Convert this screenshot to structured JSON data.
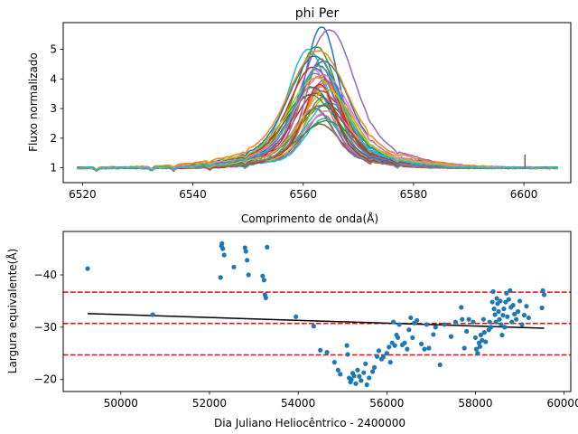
{
  "chart_data": [
    {
      "type": "line",
      "title": "phi Per",
      "xlabel": "Comprimento de onda(Å)",
      "ylabel": "Fluxo normalizado",
      "xlim": [
        6516.5,
        6608.5
      ],
      "ylim": [
        0.5,
        5.9
      ],
      "xticks": [
        6520,
        6540,
        6560,
        6580,
        6600
      ],
      "yticks": [
        1,
        2,
        3,
        4,
        5
      ],
      "grid": false,
      "legend": "none",
      "line_center": 6563,
      "peak_range": [
        2.4,
        5.65
      ],
      "spectra_count": 40,
      "x_range_data": [
        6519,
        6606.5
      ],
      "series": [
        {
          "color": "#1f77b4",
          "peak": 5.65,
          "center": 6563.3
        },
        {
          "color": "#ff7f0e",
          "peak": 3.4,
          "center": 6562.6
        },
        {
          "color": "#2ca02c",
          "peak": 5.0,
          "center": 6562.4
        },
        {
          "color": "#d62728",
          "peak": 3.5,
          "center": 6563.1
        },
        {
          "color": "#9467bd",
          "peak": 5.55,
          "center": 6564.7
        },
        {
          "color": "#8c564b",
          "peak": 2.4,
          "center": 6563.0
        },
        {
          "color": "#e377c2",
          "peak": 4.2,
          "center": 6562.0
        },
        {
          "color": "#7f7f7f",
          "peak": 3.3,
          "center": 6563.5
        },
        {
          "color": "#bcbd22",
          "peak": 3.6,
          "center": 6561.5
        },
        {
          "color": "#17becf",
          "peak": 4.9,
          "center": 6560.9
        },
        {
          "color": "#1f77b4",
          "peak": 4.5,
          "center": 6563.7
        },
        {
          "color": "#ff7f0e",
          "peak": 4.0,
          "center": 6562.9
        },
        {
          "color": "#2ca02c",
          "peak": 3.0,
          "center": 6564.1
        },
        {
          "color": "#d62728",
          "peak": 4.3,
          "center": 6561.8
        },
        {
          "color": "#9467bd",
          "peak": 3.9,
          "center": 6563.9
        },
        {
          "color": "#8c564b",
          "peak": 2.9,
          "center": 6562.3
        },
        {
          "color": "#e377c2",
          "peak": 3.7,
          "center": 6564.3
        },
        {
          "color": "#7f7f7f",
          "peak": 4.1,
          "center": 6562.2
        },
        {
          "color": "#bcbd22",
          "peak": 3.2,
          "center": 6563.6
        },
        {
          "color": "#17becf",
          "peak": 3.1,
          "center": 6564.8
        },
        {
          "color": "#1f77b4",
          "peak": 4.7,
          "center": 6562.1
        },
        {
          "color": "#ff7f0e",
          "peak": 3.8,
          "center": 6564.0
        },
        {
          "color": "#2ca02c",
          "peak": 3.35,
          "center": 6561.2
        },
        {
          "color": "#d62728",
          "peak": 4.4,
          "center": 6562.8
        },
        {
          "color": "#9467bd",
          "peak": 2.7,
          "center": 6563.4
        },
        {
          "color": "#8c564b",
          "peak": 3.45,
          "center": 6561.9
        },
        {
          "color": "#e377c2",
          "peak": 2.8,
          "center": 6564.5
        },
        {
          "color": "#7f7f7f",
          "peak": 4.6,
          "center": 6563.2
        },
        {
          "color": "#bcbd22",
          "peak": 3.95,
          "center": 6562.5
        },
        {
          "color": "#17becf",
          "peak": 2.6,
          "center": 6563.8
        },
        {
          "color": "#1f77b4",
          "peak": 3.65,
          "center": 6561.6
        },
        {
          "color": "#ff7f0e",
          "peak": 4.85,
          "center": 6562.7
        },
        {
          "color": "#2ca02c",
          "peak": 2.5,
          "center": 6564.2
        },
        {
          "color": "#d62728",
          "peak": 3.75,
          "center": 6563.0
        },
        {
          "color": "#9467bd",
          "peak": 4.25,
          "center": 6562.4
        },
        {
          "color": "#8c564b",
          "peak": 3.05,
          "center": 6563.3
        },
        {
          "color": "#e377c2",
          "peak": 4.05,
          "center": 6563.6
        },
        {
          "color": "#7f7f7f",
          "peak": 2.95,
          "center": 6562.0
        },
        {
          "color": "#bcbd22",
          "peak": 3.55,
          "center": 6564.4
        },
        {
          "color": "#17becf",
          "peak": 4.35,
          "center": 6562.9
        }
      ]
    },
    {
      "type": "scatter",
      "xlabel": "Dia Juliano Heliocêntrico - 2400000",
      "ylabel": "Largura equivalente(Å)",
      "xlim": [
        48700,
        60150
      ],
      "ylim": [
        -48.3,
        -17.7
      ],
      "y_inverted": true,
      "xticks": [
        50000,
        52000,
        54000,
        56000,
        58000,
        60000
      ],
      "yticks": [
        -40,
        -30,
        -20
      ],
      "grid": false,
      "legend": "none",
      "point_color": "#1f77b4",
      "points": [
        [
          49250,
          -41.2
        ],
        [
          50720,
          -32.4
        ],
        [
          52250,
          -39.5
        ],
        [
          52270,
          -45.5
        ],
        [
          52280,
          -46.0
        ],
        [
          52300,
          -45.0
        ],
        [
          52330,
          -43.8
        ],
        [
          52550,
          -41.5
        ],
        [
          52800,
          -45.2
        ],
        [
          52820,
          -44.5
        ],
        [
          52850,
          -42.8
        ],
        [
          52880,
          -40.0
        ],
        [
          53200,
          -39.8
        ],
        [
          53230,
          -39.0
        ],
        [
          53250,
          -36.2
        ],
        [
          53270,
          -35.6
        ],
        [
          53300,
          -45.3
        ],
        [
          53950,
          -32.0
        ],
        [
          54350,
          -30.2
        ],
        [
          54500,
          -25.6
        ],
        [
          54650,
          -25.2
        ],
        [
          54820,
          -23.3
        ],
        [
          54900,
          -21.8
        ],
        [
          54950,
          -21.0
        ],
        [
          55100,
          -26.5
        ],
        [
          55120,
          -24.8
        ],
        [
          55150,
          -20.3
        ],
        [
          55180,
          -19.5
        ],
        [
          55200,
          -20.0
        ],
        [
          55230,
          -21.2
        ],
        [
          55260,
          -20.7
        ],
        [
          55300,
          -19.2
        ],
        [
          55340,
          -21.8
        ],
        [
          55380,
          -20.6
        ],
        [
          55420,
          -19.8
        ],
        [
          55480,
          -21.3
        ],
        [
          55520,
          -23.0
        ],
        [
          55550,
          -19.0
        ],
        [
          55600,
          -20.3
        ],
        [
          55680,
          -21.5
        ],
        [
          55720,
          -22.3
        ],
        [
          55780,
          -24.4
        ],
        [
          55820,
          -25.5
        ],
        [
          55880,
          -23.9
        ],
        [
          55920,
          -24.3
        ],
        [
          56000,
          -25.0
        ],
        [
          56050,
          -26.2
        ],
        [
          56080,
          -23.3
        ],
        [
          56120,
          -27.0
        ],
        [
          56150,
          -31.0
        ],
        [
          56180,
          -26.5
        ],
        [
          56220,
          -28.5
        ],
        [
          56250,
          -28.0
        ],
        [
          56280,
          -30.5
        ],
        [
          56350,
          -26.6
        ],
        [
          56400,
          -27.0
        ],
        [
          56460,
          -25.8
        ],
        [
          56500,
          -29.5
        ],
        [
          56540,
          -31.8
        ],
        [
          56580,
          -28.0
        ],
        [
          56620,
          -30.8
        ],
        [
          56680,
          -31.3
        ],
        [
          56780,
          -26.8
        ],
        [
          56850,
          -25.8
        ],
        [
          56900,
          -30.5
        ],
        [
          56950,
          -26.0
        ],
        [
          57050,
          -28.6
        ],
        [
          57100,
          -30.0
        ],
        [
          57200,
          -22.8
        ],
        [
          57300,
          -30.5
        ],
        [
          57450,
          -28.2
        ],
        [
          57550,
          -31.0
        ],
        [
          57680,
          -33.8
        ],
        [
          57700,
          -31.5
        ],
        [
          57750,
          -26.0
        ],
        [
          57800,
          -29.2
        ],
        [
          57850,
          -31.5
        ],
        [
          57950,
          -31.0
        ],
        [
          58000,
          -28.0
        ],
        [
          58020,
          -25.8
        ],
        [
          58050,
          -25.0
        ],
        [
          58080,
          -27.0
        ],
        [
          58100,
          -26.3
        ],
        [
          58120,
          -28.5
        ],
        [
          58150,
          -27.5
        ],
        [
          58180,
          -31.5
        ],
        [
          58200,
          -29.0
        ],
        [
          58230,
          -27.2
        ],
        [
          58300,
          -29.5
        ],
        [
          58320,
          -31.0
        ],
        [
          58350,
          -30.0
        ],
        [
          58380,
          -34.8
        ],
        [
          58400,
          -36.8
        ],
        [
          58420,
          -33.5
        ],
        [
          58440,
          -32.4
        ],
        [
          58460,
          -31.0
        ],
        [
          58480,
          -35.5
        ],
        [
          58500,
          -34.5
        ],
        [
          58520,
          -33.0
        ],
        [
          58540,
          -31.5
        ],
        [
          58560,
          -35.0
        ],
        [
          58580,
          -30.5
        ],
        [
          58600,
          -28.5
        ],
        [
          58620,
          -32.3
        ],
        [
          58640,
          -33.5
        ],
        [
          58660,
          -30.0
        ],
        [
          58680,
          -34.8
        ],
        [
          58700,
          -36.5
        ],
        [
          58720,
          -32.0
        ],
        [
          58750,
          -35.3
        ],
        [
          58780,
          -37.0
        ],
        [
          58800,
          -33.8
        ],
        [
          58820,
          -31.0
        ],
        [
          58850,
          -34.2
        ],
        [
          58880,
          -32.5
        ],
        [
          58920,
          -31.5
        ],
        [
          58960,
          -33.0
        ],
        [
          59000,
          -35.0
        ],
        [
          59050,
          -30.5
        ],
        [
          59100,
          -32.3
        ],
        [
          59150,
          -34.0
        ],
        [
          59200,
          -31.8
        ],
        [
          59500,
          -33.7
        ],
        [
          59520,
          -37.0
        ],
        [
          59550,
          -36.2
        ]
      ],
      "trend_line": {
        "color": "#000000",
        "x": [
          49250,
          59550
        ],
        "y": [
          -32.6,
          -29.8
        ]
      },
      "hlines": {
        "color": "#ff0000",
        "style": "dashed",
        "y": [
          -36.7,
          -30.7,
          -24.7
        ]
      }
    }
  ]
}
